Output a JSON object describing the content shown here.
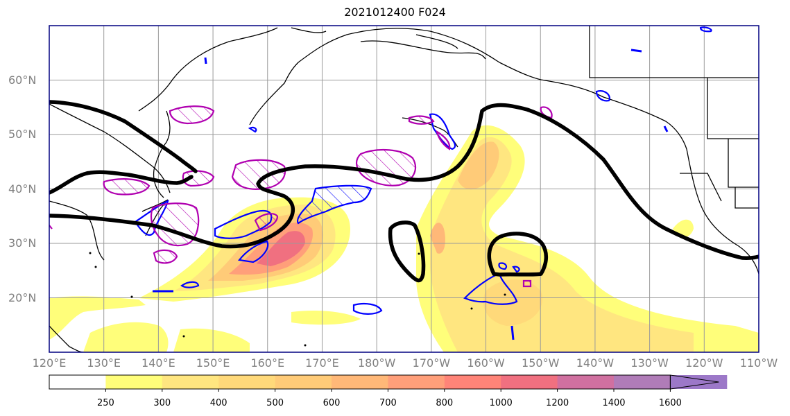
{
  "title": "2021012400 F024",
  "map": {
    "lon_min": 120,
    "lon_max": 250,
    "lat_min": 10,
    "lat_max": 70,
    "lat_ticks": [
      {
        "lat": 60,
        "label": "60°N"
      },
      {
        "lat": 50,
        "label": "50°N"
      },
      {
        "lat": 40,
        "label": "40°N"
      },
      {
        "lat": 30,
        "label": "30°N"
      },
      {
        "lat": 20,
        "label": "20°N"
      }
    ],
    "lon_ticks": [
      {
        "lon": 120,
        "label": "120°E"
      },
      {
        "lon": 130,
        "label": "130°E"
      },
      {
        "lon": 140,
        "label": "140°E"
      },
      {
        "lon": 150,
        "label": "150°E"
      },
      {
        "lon": 160,
        "label": "160°E"
      },
      {
        "lon": 170,
        "label": "170°E"
      },
      {
        "lon": 180,
        "label": "180°W"
      },
      {
        "lon": 190,
        "label": "170°W"
      },
      {
        "lon": 200,
        "label": "160°W"
      },
      {
        "lon": 210,
        "label": "150°W"
      },
      {
        "lon": 220,
        "label": "140°W"
      },
      {
        "lon": 230,
        "label": "130°W"
      },
      {
        "lon": 240,
        "label": "120°W"
      },
      {
        "lon": 250,
        "label": "110°W"
      }
    ],
    "grid": true,
    "label_color": "#808080",
    "contour_color": "#000000",
    "blue_outline_color": "#0000ff",
    "magenta_outline_color": "#b000b0"
  },
  "colorbar": {
    "levels": [
      "250",
      "300",
      "400",
      "500",
      "600",
      "700",
      "800",
      "1000",
      "1200",
      "1400",
      "1600"
    ],
    "colors": [
      "#ffffff",
      "#fffe7a",
      "#ffe680",
      "#ffd97a",
      "#ffcb78",
      "#ffb878",
      "#ff9f7a",
      "#ff8478",
      "#f07080",
      "#d070a0",
      "#b07cb8",
      "#9c78c8"
    ],
    "extend": "max"
  }
}
